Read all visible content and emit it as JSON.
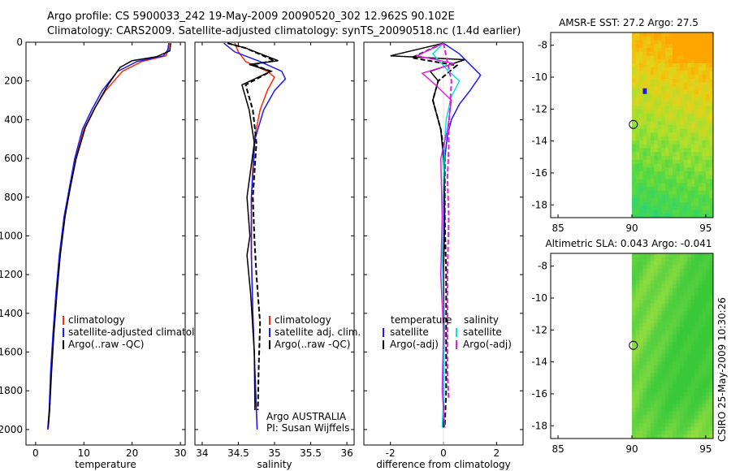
{
  "title": {
    "line1": "Argo profile: CS 5900033_242 19-May-2009 20090520_302 12.962S 90.102E",
    "line2": "Climatology: CARS2009. Satellite-adjusted climatology: synTS_20090518.nc (1.4d earlier)"
  },
  "colors": {
    "climatology": "#ff2a00",
    "satellite": "#1a1aff",
    "argo": "#000000",
    "sat_diff": "#00e5e5",
    "argo_sal_diff": "#e020e0"
  },
  "footer": {
    "credit": "CSIRO 25-May-2009 10:30:26"
  },
  "chart_data": [
    {
      "type": "line",
      "panel": "temperature",
      "xlabel": "temperature",
      "ylabel": "",
      "xlim": [
        -2,
        31
      ],
      "ylim": [
        2080,
        0
      ],
      "xticks": [
        0,
        10,
        20,
        30
      ],
      "yticks": [
        0,
        200,
        400,
        600,
        800,
        1000,
        1200,
        1400,
        1600,
        1800,
        2000
      ],
      "legend": {
        "position": "bottom-right",
        "entries": [
          "climatology",
          "satellite-adjusted climatology",
          "Argo(..raw -QC)"
        ]
      },
      "series": [
        {
          "name": "climatology",
          "color": "#ff2a00",
          "style": "solid",
          "x": [
            27.7,
            27.5,
            27,
            22,
            18,
            14.5,
            12,
            10,
            8.3,
            7.1,
            6,
            5,
            4.3,
            3.7,
            3.2,
            2.9,
            2.6
          ],
          "y": [
            5,
            40,
            70,
            100,
            150,
            250,
            350,
            450,
            600,
            750,
            900,
            1100,
            1300,
            1500,
            1700,
            1900,
            2000
          ]
        },
        {
          "name": "satellite-adjusted climatology",
          "color": "#1a1aff",
          "style": "solid",
          "x": [
            27.6,
            27.4,
            26.5,
            21,
            17,
            13.8,
            11.6,
            9.7,
            8.1,
            7,
            5.9,
            4.9,
            4.2,
            3.6,
            3.1,
            2.8,
            2.5
          ],
          "y": [
            5,
            40,
            70,
            100,
            150,
            250,
            350,
            450,
            600,
            750,
            900,
            1100,
            1300,
            1500,
            1700,
            1900,
            2000
          ]
        },
        {
          "name": "Argo(..raw -QC)",
          "color": "#000000",
          "style": "solid",
          "x": [
            28,
            27.8,
            25,
            20,
            17.5,
            15,
            12.5,
            10.3,
            8.4,
            7.2,
            6.1,
            5.1,
            4.4,
            3.8,
            3.3,
            2.9,
            2.6
          ],
          "y": [
            5,
            45,
            75,
            95,
            130,
            220,
            330,
            440,
            600,
            750,
            900,
            1100,
            1300,
            1500,
            1700,
            1900,
            1990
          ]
        }
      ]
    },
    {
      "type": "line",
      "panel": "salinity",
      "xlabel": "salinity",
      "ylabel": "",
      "xlim": [
        33.9,
        36.1
      ],
      "ylim": [
        2080,
        0
      ],
      "xticks": [
        34,
        34.5,
        35,
        35.5,
        36
      ],
      "annotations": [
        "Argo AUSTRALIA",
        "PI: Susan Wijffels"
      ],
      "legend": {
        "position": "bottom-right",
        "entries": [
          "climatology",
          "satellite adj. clim.",
          "Argo(..raw -QC)"
        ]
      },
      "series": [
        {
          "name": "climatology",
          "color": "#ff2a00",
          "style": "solid",
          "x": [
            34.45,
            34.5,
            34.6,
            34.9,
            35.0,
            34.9,
            34.8,
            34.72,
            34.68,
            34.68,
            34.7,
            34.73,
            34.75,
            34.76
          ],
          "y": [
            5,
            50,
            100,
            150,
            180,
            250,
            350,
            500,
            800,
            1100,
            1400,
            1700,
            1900,
            2000
          ]
        },
        {
          "name": "satellite adj. clim.",
          "color": "#1a1aff",
          "style": "solid",
          "x": [
            34.3,
            34.45,
            34.8,
            35.1,
            35.15,
            35.0,
            34.85,
            34.73,
            34.68,
            34.68,
            34.7,
            34.73,
            34.75,
            34.76
          ],
          "y": [
            5,
            50,
            100,
            150,
            190,
            250,
            350,
            500,
            800,
            1100,
            1400,
            1700,
            1900,
            2000
          ]
        },
        {
          "name": "Argo(..raw -QC)",
          "color": "#000000",
          "style": "solid",
          "x": [
            34.35,
            34.6,
            35.05,
            34.65,
            34.95,
            34.55,
            34.65,
            34.72,
            34.62,
            34.66,
            34.62,
            34.67,
            34.72,
            34.73
          ],
          "y": [
            5,
            30,
            95,
            115,
            150,
            220,
            350,
            520,
            800,
            1000,
            1100,
            1300,
            1600,
            1900
          ]
        },
        {
          "name": "Argo(..raw -QC) dashed",
          "color": "#000000",
          "style": "dashed",
          "x": [
            34.35,
            34.6,
            35.0,
            34.7,
            34.95,
            34.6,
            34.7,
            34.75,
            34.7,
            34.72,
            34.75,
            34.8,
            34.78,
            34.77
          ],
          "y": [
            5,
            30,
            95,
            115,
            150,
            220,
            350,
            520,
            800,
            1000,
            1200,
            1450,
            1700,
            1900
          ]
        }
      ]
    },
    {
      "type": "line",
      "panel": "difference",
      "xlabel": "difference from climatology",
      "ylabel": "",
      "xlim": [
        -3,
        3
      ],
      "ylim": [
        2080,
        0
      ],
      "xticks": [
        -2,
        0,
        2
      ],
      "legend": {
        "position": "bottom",
        "entries": [
          "temperature",
          "satellite",
          "Argo(-adj)",
          "salinity",
          "satellite",
          "Argo(-adj)"
        ]
      },
      "series": [
        {
          "name": "temperature satellite",
          "color": "#1a1aff",
          "style": "solid",
          "x": [
            0,
            0.6,
            1.4,
            1.0,
            0.6,
            0.3,
            0.15,
            0.05,
            0.02,
            0,
            0,
            0,
            0
          ],
          "y": [
            5,
            60,
            170,
            250,
            320,
            400,
            480,
            600,
            900,
            1200,
            1500,
            1800,
            1990
          ]
        },
        {
          "name": "temperature Argo(-adj)",
          "color": "#000000",
          "style": "solid",
          "x": [
            0,
            -2.0,
            0.8,
            -0.5,
            -0.2,
            -0.4,
            -0.1,
            0,
            0.05,
            0,
            0.02,
            0,
            0
          ],
          "y": [
            5,
            70,
            90,
            150,
            200,
            300,
            450,
            600,
            900,
            1200,
            1500,
            1800,
            1990
          ]
        },
        {
          "name": "temperature Argo(-adj) dashed",
          "color": "#000000",
          "style": "dashed",
          "x": [
            0,
            -1.2,
            0.5,
            -0.2,
            -0.4,
            -0.1,
            0.05,
            0.05,
            0.1,
            0.1,
            0.1,
            0.05
          ],
          "y": [
            5,
            80,
            120,
            200,
            300,
            450,
            600,
            900,
            1200,
            1500,
            1800,
            1990
          ]
        },
        {
          "name": "salinity satellite",
          "color": "#00e5e5",
          "style": "solid",
          "x": [
            0,
            -0.4,
            0.2,
            0.6,
            0.3,
            0.1,
            0.05,
            0,
            -0.05,
            -0.02,
            0.02,
            0,
            -0.05
          ],
          "y": [
            5,
            60,
            150,
            200,
            280,
            400,
            500,
            700,
            1000,
            1300,
            1600,
            1850,
            1990
          ]
        },
        {
          "name": "salinity Argo(-adj)",
          "color": "#e020e0",
          "style": "solid",
          "x": [
            0,
            -1.0,
            0.4,
            -0.8,
            -0.3,
            0.3,
            0.15,
            -0.1,
            -0.05,
            -0.1,
            0,
            -0.05,
            0.05
          ],
          "y": [
            5,
            70,
            110,
            160,
            220,
            300,
            450,
            600,
            900,
            1200,
            1500,
            1800,
            1990
          ]
        },
        {
          "name": "salinity Argo(-adj) dashed",
          "color": "#e020e0",
          "style": "dashed",
          "x": [
            0,
            0.3,
            0.2,
            0.2,
            0.15,
            0.2,
            0.15,
            0.15,
            0.15,
            0.2
          ],
          "y": [
            5,
            200,
            450,
            550,
            700,
            900,
            1200,
            1500,
            1700,
            1850
          ]
        }
      ]
    },
    {
      "type": "heatmap",
      "panel": "AMSR-E SST",
      "title": "AMSR-E SST: 27.2 Argo: 27.5",
      "xlim": [
        84.5,
        95.5
      ],
      "ylim": [
        -18.8,
        -7.2
      ],
      "xticks": [
        85,
        90,
        95
      ],
      "yticks": [
        -8,
        -10,
        -12,
        -14,
        -16,
        -18
      ],
      "marker": {
        "lon": 90.1,
        "lat": -12.96
      },
      "data_lon_start": 90,
      "colors": [
        "#ffa500",
        "#e8d018",
        "#a8e030",
        "#58d840",
        "#2ed470",
        "#20c8b0",
        "#1a1aff"
      ]
    },
    {
      "type": "heatmap",
      "panel": "Altimetric SLA",
      "title": "Altimetric SLA: 0.043 Argo: -0.041",
      "xlim": [
        84.5,
        95.5
      ],
      "ylim": [
        -18.8,
        -7.2
      ],
      "xticks": [
        85,
        90,
        95
      ],
      "yticks": [
        -8,
        -10,
        -12,
        -14,
        -16,
        -18
      ],
      "marker": {
        "lon": 90.1,
        "lat": -12.96
      },
      "data_lon_start": 90,
      "colors": [
        "#38c838",
        "#58d040",
        "#90dc40",
        "#c8e030",
        "#e8e428"
      ]
    }
  ]
}
